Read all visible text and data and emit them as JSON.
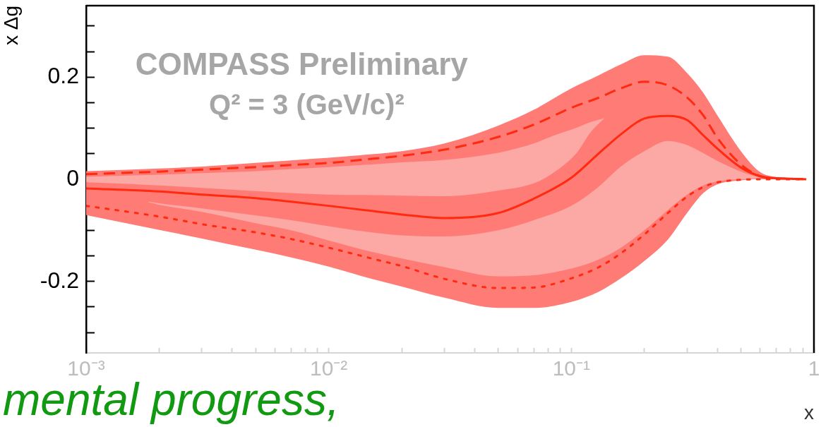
{
  "chart_data": {
    "type": "line",
    "ylabel": "x Δg",
    "xlabel": "x",
    "annotations": [
      "COMPASS Preliminary",
      "Q² = 3 (GeV/c)²",
      "mental progress,"
    ],
    "log": "x",
    "xlim": [
      0.001,
      1
    ],
    "xticks": [
      {
        "value": 0.001,
        "label": "10⁻³"
      },
      {
        "value": 0.002,
        "label": null
      },
      {
        "value": 0.003,
        "label": null
      },
      {
        "value": 0.004,
        "label": null
      },
      {
        "value": 0.005,
        "label": null
      },
      {
        "value": 0.006,
        "label": null
      },
      {
        "value": 0.007,
        "label": null
      },
      {
        "value": 0.008,
        "label": null
      },
      {
        "value": 0.009,
        "label": null
      },
      {
        "value": 0.01,
        "label": "10⁻²"
      },
      {
        "value": 0.02,
        "label": null
      },
      {
        "value": 0.03,
        "label": null
      },
      {
        "value": 0.04,
        "label": null
      },
      {
        "value": 0.05,
        "label": null
      },
      {
        "value": 0.06,
        "label": null
      },
      {
        "value": 0.07,
        "label": null
      },
      {
        "value": 0.08,
        "label": null
      },
      {
        "value": 0.09,
        "label": null
      },
      {
        "value": 0.1,
        "label": "10⁻¹"
      },
      {
        "value": 0.2,
        "label": null
      },
      {
        "value": 0.3,
        "label": null
      },
      {
        "value": 0.4,
        "label": null
      },
      {
        "value": 0.5,
        "label": null
      },
      {
        "value": 0.6,
        "label": null
      },
      {
        "value": 0.7,
        "label": null
      },
      {
        "value": 0.8,
        "label": null
      },
      {
        "value": 0.9,
        "label": null
      },
      1
    ],
    "ylim": [
      -0.34,
      0.34
    ],
    "yticks": [
      {
        "value": -0.3,
        "label": null
      },
      {
        "value": -0.25,
        "label": null
      },
      -0.2,
      {
        "value": -0.15,
        "label": null
      },
      {
        "value": -0.1,
        "label": null
      },
      {
        "value": -0.05,
        "label": null
      },
      0,
      {
        "value": 0.05,
        "label": null
      },
      {
        "value": 0.1,
        "label": null
      },
      {
        "value": 0.15,
        "label": null
      },
      0.2,
      {
        "value": 0.25,
        "label": null
      },
      {
        "value": 0.3,
        "label": null
      }
    ],
    "x": [
      0.001,
      0.002,
      0.003,
      0.005,
      0.007,
      0.01,
      0.015,
      0.02,
      0.03,
      0.05,
      0.07,
      0.1,
      0.13,
      0.16,
      0.2,
      0.25,
      0.3,
      0.35,
      0.4,
      0.5,
      0.6,
      0.7,
      0.8,
      0.93
    ],
    "series": [
      {
        "color": "#ff7b76",
        "values": [
          null,
          null,
          null,
          null,
          null,
          null,
          null,
          null,
          null,
          null,
          null,
          null,
          null,
          null,
          null,
          null,
          null,
          null,
          null,
          null,
          null,
          null,
          null,
          null
        ],
        "upper": [
          0.016,
          0.021,
          0.025,
          0.032,
          0.037,
          0.042,
          0.049,
          0.055,
          0.07,
          0.105,
          0.136,
          0.178,
          0.204,
          0.225,
          0.243,
          0.24,
          0.208,
          0.169,
          0.125,
          0.055,
          0.014,
          0.004,
          0.002,
          0.0
        ],
        "lower": [
          -0.07,
          -0.099,
          -0.116,
          -0.138,
          -0.153,
          -0.171,
          -0.195,
          -0.21,
          -0.232,
          -0.252,
          -0.252,
          -0.24,
          -0.22,
          -0.194,
          -0.16,
          -0.118,
          -0.066,
          -0.027,
          -0.01,
          -0.002,
          0.0,
          0.0,
          0.0,
          0.0
        ]
      },
      {
        "color": "#fca8a4",
        "x": [
          0.001,
          0.002,
          0.003,
          0.005,
          0.007,
          0.01,
          0.015,
          0.02,
          0.03,
          0.05,
          0.07,
          0.084,
          0.105,
          0.12,
          0.137
        ],
        "values": [
          null,
          null,
          null,
          null,
          null,
          null,
          null,
          null,
          null,
          null,
          null,
          null,
          null,
          null,
          null
        ],
        "upper": [
          0.005,
          0.009,
          0.012,
          0.016,
          0.02,
          0.024,
          0.029,
          0.033,
          0.038,
          0.052,
          0.07,
          0.085,
          0.101,
          0.112,
          0.12
        ],
        "lower": [
          -0.006,
          -0.012,
          -0.017,
          -0.023,
          -0.027,
          -0.03,
          -0.031,
          -0.032,
          -0.033,
          -0.022,
          -0.008,
          0.012,
          0.051,
          0.092,
          0.12
        ]
      },
      {
        "color": "#fca8a4",
        "x": [
          0.0018,
          0.002,
          0.003,
          0.005,
          0.007,
          0.01,
          0.015,
          0.02,
          0.03,
          0.05,
          0.07,
          0.1,
          0.13,
          0.16,
          0.2,
          0.25,
          0.3,
          0.35,
          0.4,
          0.5,
          0.6
        ],
        "values": [
          null,
          null,
          null,
          null,
          null,
          null,
          null,
          null,
          null,
          null,
          null,
          null,
          null,
          null,
          null,
          null,
          null,
          null,
          null,
          null,
          null
        ],
        "upper": [
          -0.044,
          -0.047,
          -0.057,
          -0.071,
          -0.08,
          -0.092,
          -0.104,
          -0.11,
          -0.112,
          -0.1,
          -0.08,
          -0.052,
          -0.014,
          0.025,
          0.055,
          0.075,
          0.067,
          0.051,
          0.036,
          0.015,
          0.003
        ],
        "lower": [
          -0.045,
          -0.05,
          -0.064,
          -0.086,
          -0.1,
          -0.12,
          -0.142,
          -0.155,
          -0.172,
          -0.19,
          -0.188,
          -0.175,
          -0.157,
          -0.134,
          -0.1,
          -0.06,
          -0.03,
          -0.012,
          -0.004,
          0.0,
          0.001
        ]
      },
      {
        "color": "#ff2a0f",
        "line_style": "solid",
        "values": [
          -0.018,
          -0.024,
          -0.03,
          -0.037,
          -0.044,
          -0.052,
          -0.062,
          -0.069,
          -0.076,
          -0.066,
          -0.038,
          0.003,
          0.051,
          0.088,
          0.119,
          0.124,
          0.116,
          0.086,
          0.06,
          0.023,
          0.006,
          0.002,
          0.001,
          0.0
        ]
      },
      {
        "color": "#ff2a0f",
        "line_style": "dashed",
        "values": [
          0.01,
          0.015,
          0.019,
          0.024,
          0.028,
          0.032,
          0.04,
          0.046,
          0.058,
          0.083,
          0.107,
          0.14,
          0.16,
          0.178,
          0.191,
          0.184,
          0.16,
          0.125,
          0.081,
          0.029,
          0.006,
          0.002,
          0.001,
          0.0
        ]
      },
      {
        "color": "#ff2a0f",
        "line_style": "dotted",
        "values": [
          -0.052,
          -0.073,
          -0.088,
          -0.104,
          -0.117,
          -0.134,
          -0.155,
          -0.17,
          -0.195,
          -0.213,
          -0.212,
          -0.194,
          -0.172,
          -0.145,
          -0.108,
          -0.066,
          -0.034,
          -0.015,
          -0.006,
          -0.001,
          0.0,
          0.0,
          0.0,
          0.0
        ]
      }
    ]
  }
}
